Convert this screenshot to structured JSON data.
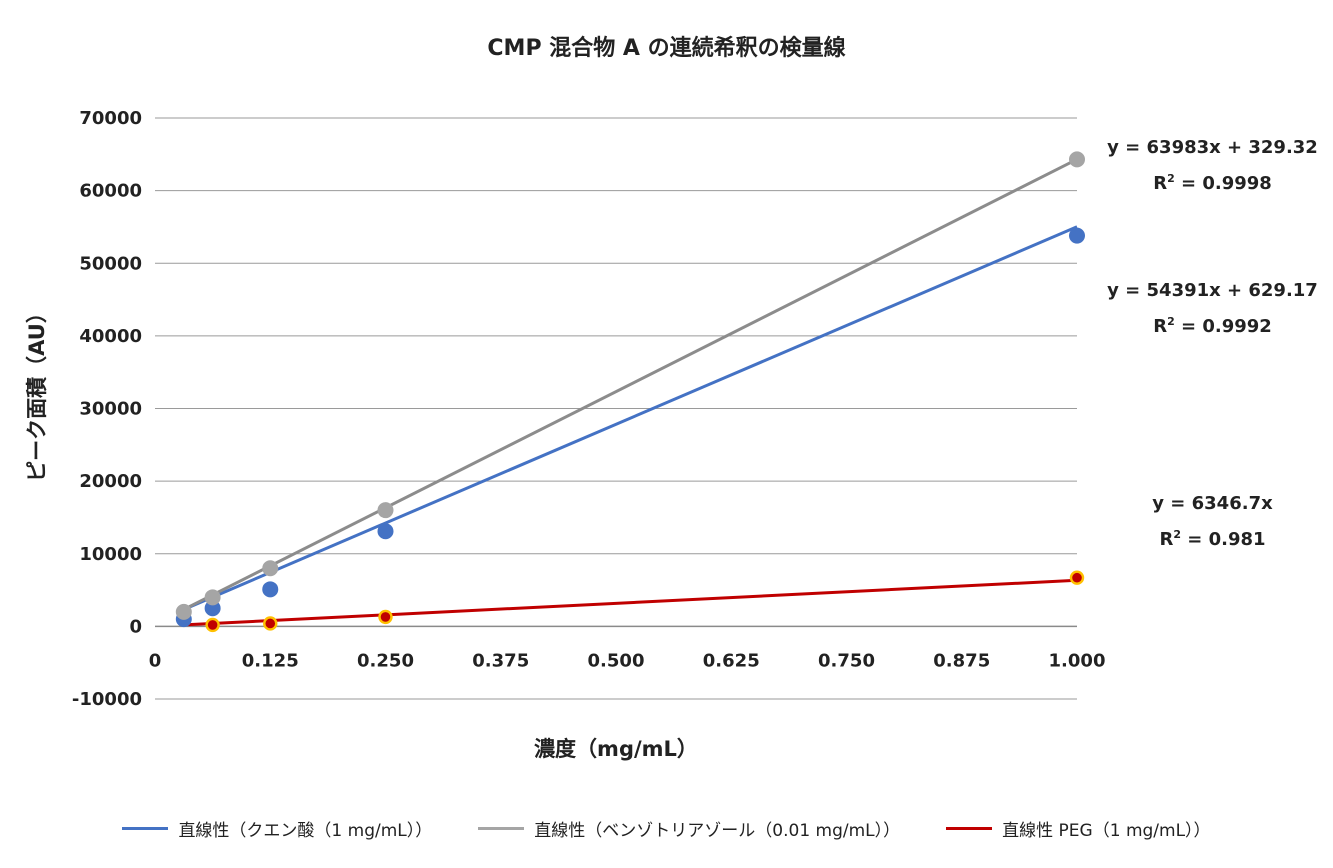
{
  "chart_data": {
    "type": "scatter",
    "title": "CMP 混合物 A の連続希釈の検量線",
    "xlabel": "濃度（mg/mL）",
    "ylabel": "ピーク面積（AU）",
    "xlim": [
      0,
      1
    ],
    "ylim": [
      -10000,
      70000
    ],
    "x_ticks": [
      "0",
      "0.125",
      "0.250",
      "0.375",
      "0.500",
      "0.625",
      "0.750",
      "0.875",
      "1.000"
    ],
    "y_ticks": [
      "70000",
      "60000",
      "50000",
      "40000",
      "30000",
      "20000",
      "10000",
      "0",
      "-10000"
    ],
    "grid": true,
    "legend_position": "bottom",
    "series": [
      {
        "name": "直線性（クエン酸（1 mg/mL））",
        "color": "#4472C4",
        "marker_edge": "#4472C4",
        "x": [
          0.03125,
          0.0625,
          0.125,
          0.25,
          1.0
        ],
        "y": [
          1000,
          2500,
          5100,
          13100,
          53800
        ],
        "trend": {
          "slope": 54391,
          "intercept": 629.17
        },
        "equation": "y = 54391x + 629.17",
        "r2_label": "R",
        "r2_value": " = 0.9992"
      },
      {
        "name": "直線性（ベンゾトリアゾール（0.01 mg/mL））",
        "color": "#A5A5A5",
        "line_color": "#8C8C8C",
        "marker_edge": "#A5A5A5",
        "x": [
          0.03125,
          0.0625,
          0.125,
          0.25,
          1.0
        ],
        "y": [
          2000,
          4000,
          8000,
          16000,
          64300
        ],
        "trend": {
          "slope": 63983,
          "intercept": 329.32
        },
        "equation": "y = 63983x + 329.32",
        "r2_label": "R",
        "r2_value": " = 0.9998"
      },
      {
        "name": "直線性 PEG（1 mg/mL））",
        "color": "#C00000",
        "marker_edge": "#FFC000",
        "x": [
          0.0625,
          0.125,
          0.25,
          1.0
        ],
        "y": [
          200,
          400,
          1300,
          6700
        ],
        "trend": {
          "slope": 6346.7,
          "intercept": 0
        },
        "equation": "y = 6346.7x",
        "r2_label": "R",
        "r2_value": " = 0.981"
      }
    ]
  }
}
